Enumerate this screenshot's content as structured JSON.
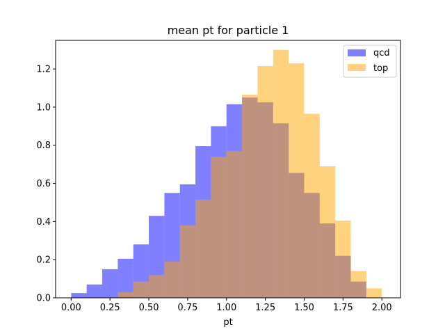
{
  "chart_data": {
    "type": "bar",
    "title": "mean pt for particle 1",
    "xlabel": "pt",
    "ylabel": "",
    "xlim": [
      -0.1,
      2.12
    ],
    "ylim": [
      0,
      1.35
    ],
    "xticks": [
      "0.00",
      "0.25",
      "0.50",
      "0.75",
      "1.00",
      "1.25",
      "1.50",
      "1.75",
      "2.00"
    ],
    "yticks": [
      "0.0",
      "0.2",
      "0.4",
      "0.6",
      "0.8",
      "1.0",
      "1.2"
    ],
    "legend_position": "top-right",
    "grid": false,
    "series": [
      {
        "name": "qcd",
        "color": "#0000ff",
        "alpha": 0.5,
        "bin_edges": [
          0.0,
          0.1,
          0.2,
          0.3,
          0.4,
          0.5,
          0.6,
          0.7,
          0.8,
          0.9,
          1.0,
          1.1,
          1.2,
          1.3,
          1.4,
          1.5,
          1.6,
          1.7,
          1.8,
          1.9,
          2.0
        ],
        "values": [
          0.025,
          0.07,
          0.15,
          0.205,
          0.28,
          0.43,
          0.55,
          0.595,
          0.795,
          0.9,
          1.015,
          1.05,
          1.025,
          0.915,
          0.655,
          0.55,
          0.39,
          0.22,
          0.085,
          0.0
        ]
      },
      {
        "name": "top",
        "color": "#ffa500",
        "alpha": 0.5,
        "bin_edges": [
          0.3,
          0.4,
          0.5,
          0.6,
          0.7,
          0.8,
          0.9,
          1.0,
          1.1,
          1.2,
          1.3,
          1.4,
          1.5,
          1.6,
          1.7,
          1.8,
          1.9,
          2.0
        ],
        "values": [
          0.03,
          0.085,
          0.12,
          0.19,
          0.38,
          0.515,
          0.74,
          0.77,
          1.065,
          1.215,
          1.3,
          1.23,
          0.965,
          0.69,
          0.405,
          0.14,
          0.05
        ]
      }
    ]
  }
}
